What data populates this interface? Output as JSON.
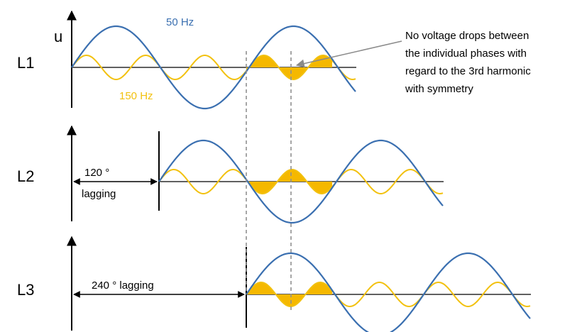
{
  "rows": [
    {
      "label": "L1"
    },
    {
      "label": "L2"
    },
    {
      "label": "L3"
    }
  ],
  "axis_label": "u",
  "wave_labels": {
    "fundamental": "50 Hz",
    "harmonic": "150 Hz"
  },
  "phase_labels": {
    "l2_line1": "120 °",
    "l2_line2": "lagging",
    "l3": "240 ° lagging"
  },
  "note_lines": [
    "No voltage drops between",
    "the individual phases with",
    "regard to the 3rd harmonic",
    "with symmetry"
  ],
  "colors": {
    "fundamental": "#3a6fb0",
    "harmonic": "#f2c10f",
    "fill": "#f5b800",
    "axis": "#000000",
    "guide": "#909090",
    "arrow": "#8a8a8a"
  }
}
